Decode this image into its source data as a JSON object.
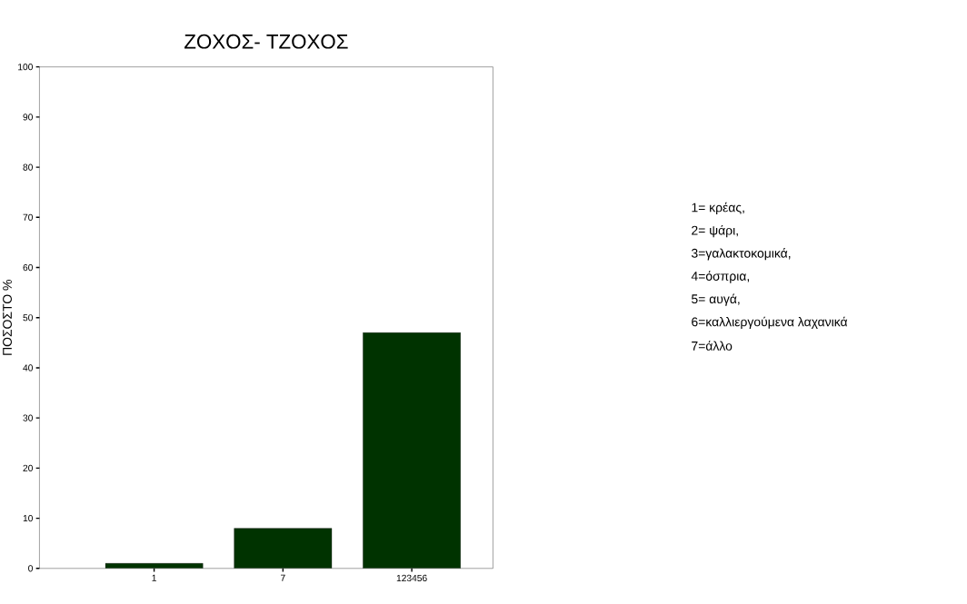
{
  "chart_data": {
    "type": "bar",
    "title": "ΖΟΧΟΣ- ΤΖΟΧΟΣ",
    "ylabel": "ΠΟΣΟΣΤΟ %",
    "categories": [
      "1",
      "7",
      "123456"
    ],
    "values": [
      1,
      8,
      47
    ],
    "color": "#003300",
    "ylim": [
      0,
      100
    ],
    "yticks": [
      0,
      10,
      20,
      30,
      40,
      50,
      60,
      70,
      80,
      90,
      100
    ],
    "annotations": [
      "1= κρέας,",
      "2= ψάρι,",
      "3=γαλακτοκομικά,",
      "4=όσπρια,",
      "5= αυγά,",
      "6=καλλιεργούμενα λαχανικά",
      "7=άλλο"
    ]
  }
}
